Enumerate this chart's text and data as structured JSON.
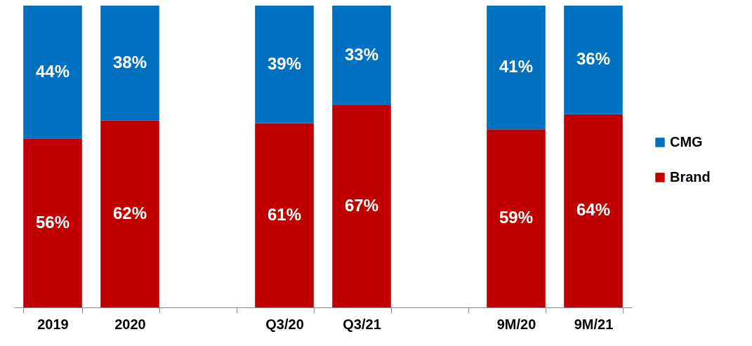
{
  "chart_data": {
    "type": "bar",
    "stacked": true,
    "legend": "right",
    "grid": false,
    "categories": [
      "2019",
      "2020",
      null,
      "Q3/20",
      "Q3/21",
      null,
      "9M/20",
      "9M/21"
    ],
    "series": [
      {
        "name": "Brand",
        "color": "#c00000",
        "values": [
          56,
          62,
          null,
          61,
          67,
          null,
          59,
          64
        ],
        "value_labels": [
          "56%",
          "62%",
          null,
          "61%",
          "67%",
          null,
          "59%",
          "64%"
        ]
      },
      {
        "name": "CMG",
        "color": "#0070c0",
        "values": [
          44,
          38,
          null,
          39,
          33,
          null,
          41,
          36
        ],
        "value_labels": [
          "44%",
          "38%",
          null,
          "39%",
          "33%",
          null,
          "41%",
          "36%"
        ]
      }
    ]
  }
}
